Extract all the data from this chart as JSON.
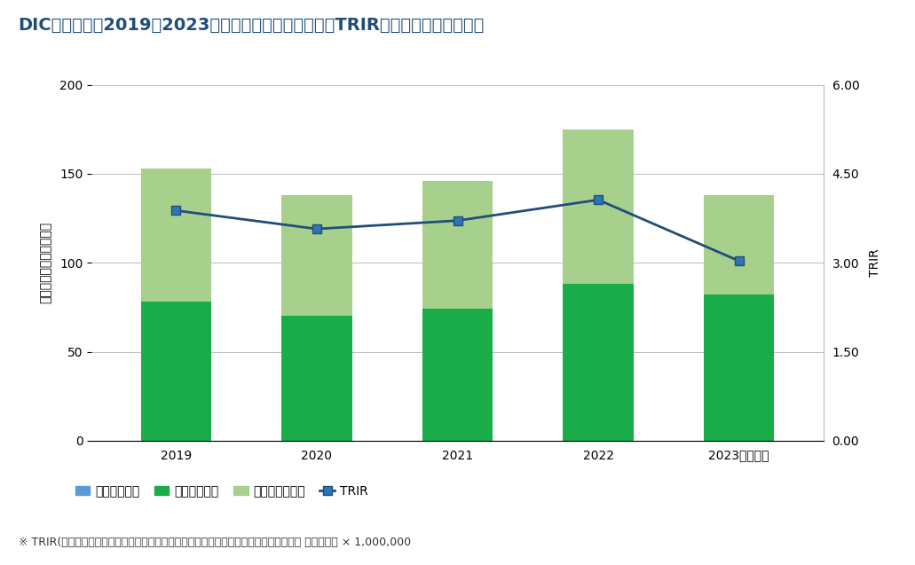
{
  "title": "DICグループの2019〜2023年度の総労働災害度数率（TRIR）と労働災害死傷者数",
  "years": [
    "2019",
    "2020",
    "2021",
    "2022",
    "2023（年度）"
  ],
  "years_x": [
    0,
    1,
    2,
    3,
    4
  ],
  "death": [
    0,
    0,
    0,
    0,
    0
  ],
  "lost_time": [
    78,
    70,
    74,
    88,
    82
  ],
  "no_lost_time": [
    75,
    68,
    72,
    87,
    56
  ],
  "trir": [
    3.88,
    3.57,
    3.71,
    4.06,
    3.03
  ],
  "color_death": "#5b9bd5",
  "color_lost": "#1aab4b",
  "color_nolost": "#a8d08d",
  "color_trir_line": "#1f4e79",
  "color_trir_marker_face": "#2e75b6",
  "color_trir_marker_edge": "#1f4e79",
  "color_title": "#1f4e79",
  "ylabel_left": "労働災害死傷者数（人）",
  "ylabel_right": "TRIR",
  "ylim_left": [
    0,
    200
  ],
  "ylim_right": [
    0,
    6.0
  ],
  "yticks_left": [
    0,
    50,
    100,
    150,
    200
  ],
  "yticks_right": [
    0.0,
    1.5,
    3.0,
    4.5,
    6.0
  ],
  "legend_death": "死亡災害者数",
  "legend_lost": "休業災害者数",
  "legend_nolost": "不休業災害者数",
  "legend_trir": "TRIR",
  "footnote": "※ TRIR(総労働災害度数率）　＝　（死亡災害者数＋休業災害者数＋不休業災害者数）／ 労働時間数 × 1,000,000",
  "bg_color": "#ffffff",
  "grid_color": "#bbbbbb",
  "bar_width": 0.5,
  "title_fontsize": 14,
  "axis_fontsize": 10,
  "tick_fontsize": 10,
  "legend_fontsize": 10,
  "footnote_fontsize": 9
}
